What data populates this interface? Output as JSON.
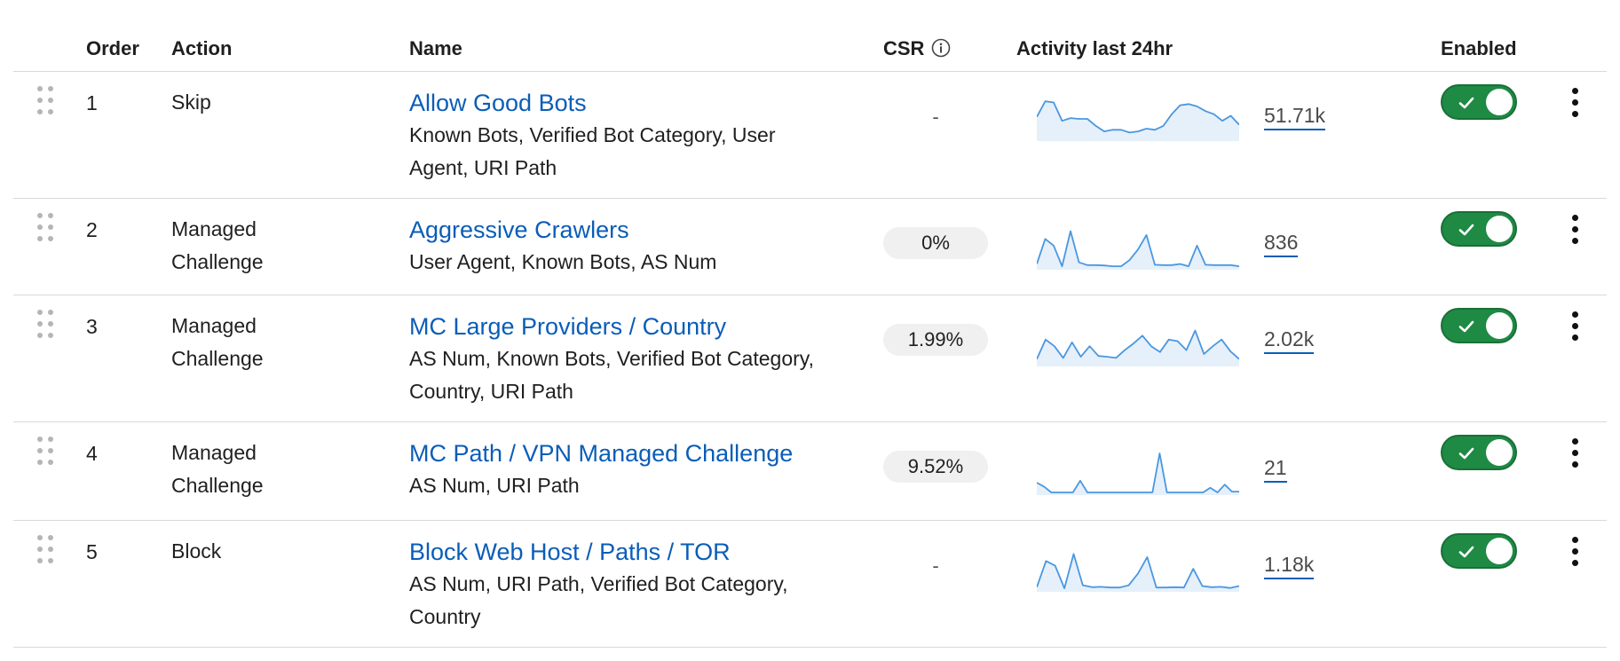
{
  "table": {
    "headers": {
      "order": "Order",
      "action": "Action",
      "name": "Name",
      "csr": "CSR",
      "activity": "Activity last 24hr",
      "enabled": "Enabled"
    },
    "rows": [
      {
        "order": "1",
        "action_line1": "Skip",
        "action_line2": "",
        "name": "Allow Good Bots",
        "desc_line1": "Known Bots, Verified Bot Category, User",
        "desc_line2": "Agent, URI Path",
        "csr": "-",
        "count": "51.71k",
        "enabled": true,
        "activity": [
          0.55,
          0.95,
          0.92,
          0.45,
          0.52,
          0.5,
          0.5,
          0.32,
          0.18,
          0.22,
          0.22,
          0.15,
          0.18,
          0.25,
          0.22,
          0.32,
          0.62,
          0.85,
          0.88,
          0.82,
          0.7,
          0.62,
          0.45,
          0.58,
          0.35
        ]
      },
      {
        "order": "2",
        "action_line1": "Managed",
        "action_line2": "Challenge",
        "name": "Aggressive Crawlers",
        "desc_line1": "User Agent, Known Bots, AS Num",
        "desc_line2": "",
        "csr": "0%",
        "count": "836",
        "enabled": true,
        "activity": [
          0.08,
          0.72,
          0.55,
          0.02,
          0.92,
          0.12,
          0.05,
          0.05,
          0.04,
          0.02,
          0.02,
          0.18,
          0.45,
          0.82,
          0.06,
          0.05,
          0.05,
          0.08,
          0.02,
          0.55,
          0.06,
          0.05,
          0.05,
          0.05,
          0.02
        ]
      },
      {
        "order": "3",
        "action_line1": "Managed",
        "action_line2": "Challenge",
        "name": "MC Large Providers / Country",
        "desc_line1": "AS Num, Known Bots, Verified Bot Category,",
        "desc_line2": "Country, URI Path",
        "csr": "1.99%",
        "count": "2.02k",
        "enabled": true,
        "activity": [
          0.12,
          0.62,
          0.45,
          0.15,
          0.55,
          0.18,
          0.45,
          0.2,
          0.18,
          0.15,
          0.35,
          0.52,
          0.72,
          0.45,
          0.3,
          0.62,
          0.58,
          0.35,
          0.85,
          0.25,
          0.45,
          0.62,
          0.32,
          0.12
        ]
      },
      {
        "order": "4",
        "action_line1": "Managed",
        "action_line2": "Challenge",
        "name": "MC Path / VPN Managed Challenge",
        "desc_line1": "AS Num, URI Path",
        "desc_line2": "",
        "csr": "9.52%",
        "count": "21",
        "enabled": true,
        "activity": [
          0.25,
          0.15,
          0.0,
          0.0,
          0.0,
          0.0,
          0.3,
          0.0,
          0.0,
          0.0,
          0.0,
          0.0,
          0.0,
          0.0,
          0.0,
          0.0,
          0.0,
          1.0,
          0.0,
          0.0,
          0.0,
          0.0,
          0.0,
          0.0,
          0.12,
          0.0,
          0.2,
          0.02,
          0.02
        ]
      },
      {
        "order": "5",
        "action_line1": "Block",
        "action_line2": "",
        "name": "Block Web Host / Paths / TOR",
        "desc_line1": "AS Num, URI Path, Verified Bot Category,",
        "desc_line2": "Country",
        "csr": "-",
        "count": "1.18k",
        "enabled": true,
        "activity": [
          0.05,
          0.72,
          0.6,
          0.02,
          0.9,
          0.1,
          0.05,
          0.06,
          0.04,
          0.04,
          0.1,
          0.4,
          0.82,
          0.04,
          0.04,
          0.05,
          0.04,
          0.52,
          0.08,
          0.05,
          0.06,
          0.03,
          0.08
        ]
      }
    ]
  },
  "colors": {
    "link": "#0a5db8",
    "toggle_on": "#1e8a44",
    "sparkline_stroke": "#4a97e0",
    "sparkline_fill": "#e6f0fb"
  },
  "icons": {
    "csr_info": "info-circle-icon",
    "drag": "drag-handle-icon",
    "menu": "kebab-menu-icon",
    "toggle_check": "check-icon"
  }
}
